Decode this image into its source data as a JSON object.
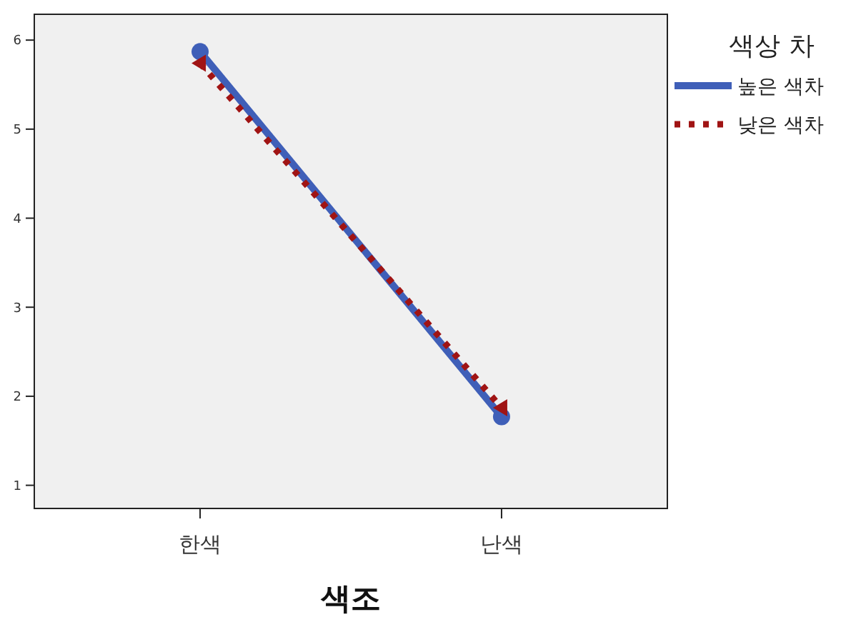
{
  "chart_data": {
    "type": "line",
    "xlabel": "색조",
    "legend_title": "색상 차",
    "categories": [
      "한색",
      "난색"
    ],
    "series": [
      {
        "name": "높은 색차",
        "color": "#3f5fb8",
        "values": [
          5.87,
          1.77
        ],
        "marker": "circle",
        "line_style": "solid"
      },
      {
        "name": "낮은 색차",
        "color": "#a01414",
        "values": [
          5.74,
          1.87
        ],
        "marker": "triangle",
        "line_style": "dotted"
      }
    ],
    "ylim": [
      0.74,
      6.29
    ],
    "yticks": [
      1,
      2,
      3,
      4,
      5,
      6
    ],
    "grid": false,
    "legend": "top right"
  }
}
